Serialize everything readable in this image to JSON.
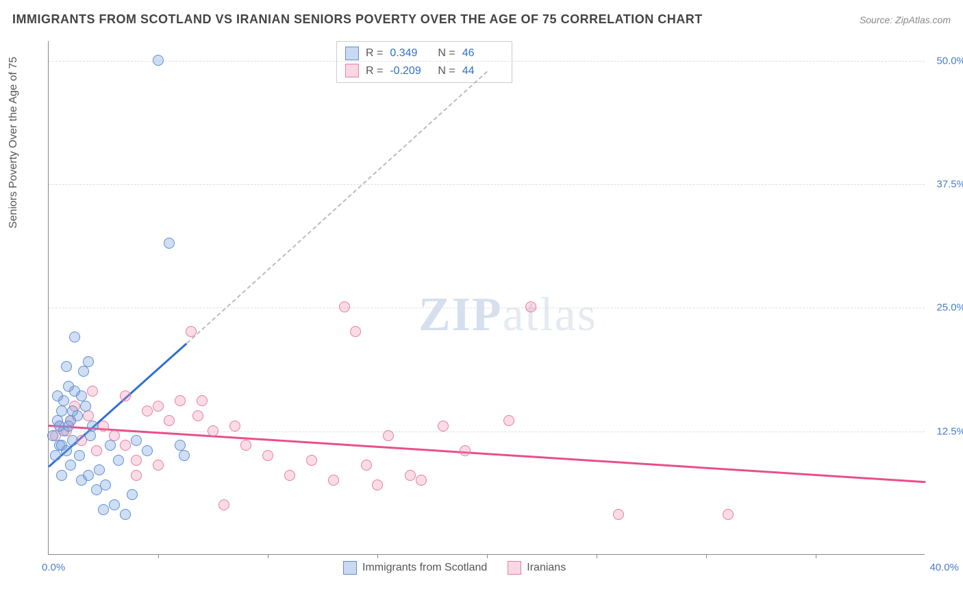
{
  "header": {
    "title": "IMMIGRANTS FROM SCOTLAND VS IRANIAN SENIORS POVERTY OVER THE AGE OF 75 CORRELATION CHART",
    "source": "Source: ZipAtlas.com"
  },
  "chart": {
    "type": "scatter",
    "y_axis_label": "Seniors Poverty Over the Age of 75",
    "xlim": [
      0,
      40
    ],
    "ylim": [
      0,
      52
    ],
    "x_origin_label": "0.0%",
    "x_max_label": "40.0%",
    "y_ticks": [
      {
        "value": 12.5,
        "label": "12.5%"
      },
      {
        "value": 25.0,
        "label": "25.0%"
      },
      {
        "value": 37.5,
        "label": "37.5%"
      },
      {
        "value": 50.0,
        "label": "50.0%"
      }
    ],
    "x_minor_ticks": [
      5,
      10,
      15,
      20,
      25,
      30,
      35
    ],
    "background_color": "#ffffff",
    "grid_color": "#dddddd",
    "axis_color": "#888888",
    "tick_label_color": "#4a7bc8",
    "series": [
      {
        "name": "Immigrants from Scotland",
        "color_fill": "rgba(120,160,220,0.35)",
        "color_stroke": "#5b8fd6",
        "trend_color": "#2e6fd1",
        "R": "0.349",
        "N": "46",
        "trend_line": {
          "x1": 0,
          "y1": 9.0,
          "x2": 6.3,
          "y2": 21.5,
          "dash_extend": {
            "x2": 20,
            "y2": 49
          }
        },
        "points": [
          [
            0.2,
            12.0
          ],
          [
            0.3,
            10.0
          ],
          [
            0.4,
            13.5
          ],
          [
            0.5,
            11.0
          ],
          [
            0.5,
            13.0
          ],
          [
            0.6,
            14.5
          ],
          [
            0.6,
            8.0
          ],
          [
            0.7,
            15.5
          ],
          [
            0.7,
            12.5
          ],
          [
            0.8,
            10.5
          ],
          [
            0.8,
            19.0
          ],
          [
            0.9,
            17.0
          ],
          [
            1.0,
            13.5
          ],
          [
            1.0,
            9.0
          ],
          [
            1.1,
            11.5
          ],
          [
            1.2,
            22.0
          ],
          [
            1.2,
            16.5
          ],
          [
            1.3,
            14.0
          ],
          [
            1.4,
            10.0
          ],
          [
            1.5,
            7.5
          ],
          [
            1.6,
            18.5
          ],
          [
            1.7,
            15.0
          ],
          [
            1.8,
            19.5
          ],
          [
            1.9,
            12.0
          ],
          [
            2.0,
            13.0
          ],
          [
            2.2,
            6.5
          ],
          [
            2.3,
            8.5
          ],
          [
            2.5,
            4.5
          ],
          [
            2.6,
            7.0
          ],
          [
            2.8,
            11.0
          ],
          [
            3.0,
            5.0
          ],
          [
            3.2,
            9.5
          ],
          [
            3.5,
            4.0
          ],
          [
            3.8,
            6.0
          ],
          [
            4.0,
            11.5
          ],
          [
            4.5,
            10.5
          ],
          [
            5.0,
            50.0
          ],
          [
            5.5,
            31.5
          ],
          [
            6.0,
            11.0
          ],
          [
            0.4,
            16.0
          ],
          [
            0.6,
            11.0
          ],
          [
            0.9,
            13.0
          ],
          [
            1.1,
            14.5
          ],
          [
            1.5,
            16.0
          ],
          [
            1.8,
            8.0
          ],
          [
            6.2,
            10.0
          ]
        ]
      },
      {
        "name": "Iranians",
        "color_fill": "rgba(240,140,170,0.3)",
        "color_stroke": "#e87ba3",
        "trend_color": "#e84f8a",
        "R": "-0.209",
        "N": "44",
        "trend_line": {
          "x1": 0,
          "y1": 13.2,
          "x2": 40,
          "y2": 7.5
        },
        "points": [
          [
            0.5,
            13.0
          ],
          [
            0.8,
            12.5
          ],
          [
            1.0,
            13.5
          ],
          [
            1.2,
            15.0
          ],
          [
            1.5,
            11.5
          ],
          [
            1.8,
            14.0
          ],
          [
            2.0,
            16.5
          ],
          [
            2.2,
            10.5
          ],
          [
            2.5,
            13.0
          ],
          [
            3.0,
            12.0
          ],
          [
            3.5,
            11.0
          ],
          [
            4.0,
            9.5
          ],
          [
            4.5,
            14.5
          ],
          [
            5.0,
            15.0
          ],
          [
            5.5,
            13.5
          ],
          [
            6.0,
            15.5
          ],
          [
            6.5,
            22.5
          ],
          [
            6.8,
            14.0
          ],
          [
            7.0,
            15.5
          ],
          [
            7.5,
            12.5
          ],
          [
            8.0,
            5.0
          ],
          [
            8.5,
            13.0
          ],
          [
            9.0,
            11.0
          ],
          [
            10.0,
            10.0
          ],
          [
            11.0,
            8.0
          ],
          [
            12.0,
            9.5
          ],
          [
            13.0,
            7.5
          ],
          [
            13.5,
            25.0
          ],
          [
            14.0,
            22.5
          ],
          [
            14.5,
            9.0
          ],
          [
            15.0,
            7.0
          ],
          [
            15.5,
            12.0
          ],
          [
            16.5,
            8.0
          ],
          [
            17.0,
            7.5
          ],
          [
            18.0,
            13.0
          ],
          [
            19.0,
            10.5
          ],
          [
            21.0,
            13.5
          ],
          [
            22.0,
            25.0
          ],
          [
            26.0,
            4.0
          ],
          [
            31.0,
            4.0
          ],
          [
            4.0,
            8.0
          ],
          [
            5.0,
            9.0
          ],
          [
            3.5,
            16.0
          ],
          [
            0.3,
            12.0
          ]
        ]
      }
    ],
    "bottom_legend": [
      {
        "swatch": "blue",
        "label": "Immigrants from Scotland"
      },
      {
        "swatch": "pink",
        "label": "Iranians"
      }
    ],
    "watermark": {
      "prefix": "ZIP",
      "suffix": "atlas"
    }
  }
}
